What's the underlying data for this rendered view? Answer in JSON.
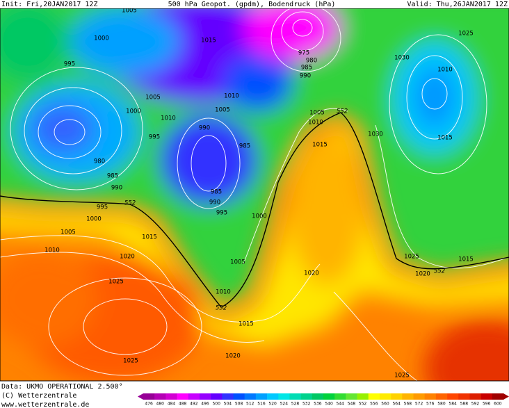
{
  "header": {
    "init": "Init: Fri,20JAN2017 12Z",
    "title": "500 hPa Geopot. (gpdm), Bodendruck (hPa)",
    "valid": "Valid: Thu,26JAN2017 12Z"
  },
  "contour_labels": [
    1005,
    1015,
    1000,
    995,
    1005,
    1000,
    1010,
    995,
    990,
    1010,
    1005,
    985,
    980,
    985,
    990,
    995,
    552,
    1000,
    1005,
    1010,
    1015,
    1020,
    1025,
    985,
    990,
    995,
    1000,
    1005,
    1010,
    552,
    1015,
    1020,
    1025,
    975,
    980,
    985,
    990,
    1025,
    1030,
    1010,
    1015,
    1030,
    1005,
    552,
    1010,
    1015,
    1020,
    1025,
    1020,
    552,
    1015,
    1025
  ],
  "footer": {
    "data_source": "Data: UKMO OPERATIONAL 2.500°",
    "copyright": "(C) Wetterzentrale",
    "url": "www.wetterzentrale.de"
  },
  "colorbar": {
    "ticks": [
      476,
      480,
      484,
      488,
      492,
      496,
      500,
      504,
      508,
      512,
      516,
      520,
      524,
      528,
      532,
      536,
      540,
      544,
      548,
      552,
      556,
      560,
      564,
      568,
      572,
      576,
      580,
      584,
      588,
      592,
      596,
      600
    ],
    "colors": [
      "#960096",
      "#b400b4",
      "#d200d2",
      "#ff00ff",
      "#c800ff",
      "#9600ff",
      "#6400ff",
      "#3232ff",
      "#0050ff",
      "#0078ff",
      "#00a0ff",
      "#00c8ff",
      "#00e6e6",
      "#00dcb4",
      "#00d28c",
      "#00c864",
      "#00d23c",
      "#32dc32",
      "#64e632",
      "#96f000",
      "#ffff00",
      "#ffeb00",
      "#ffd200",
      "#ffb400",
      "#ff9b00",
      "#ff8200",
      "#ff6400",
      "#ff4600",
      "#f03200",
      "#dc1e00",
      "#c80000",
      "#a00000"
    ]
  }
}
